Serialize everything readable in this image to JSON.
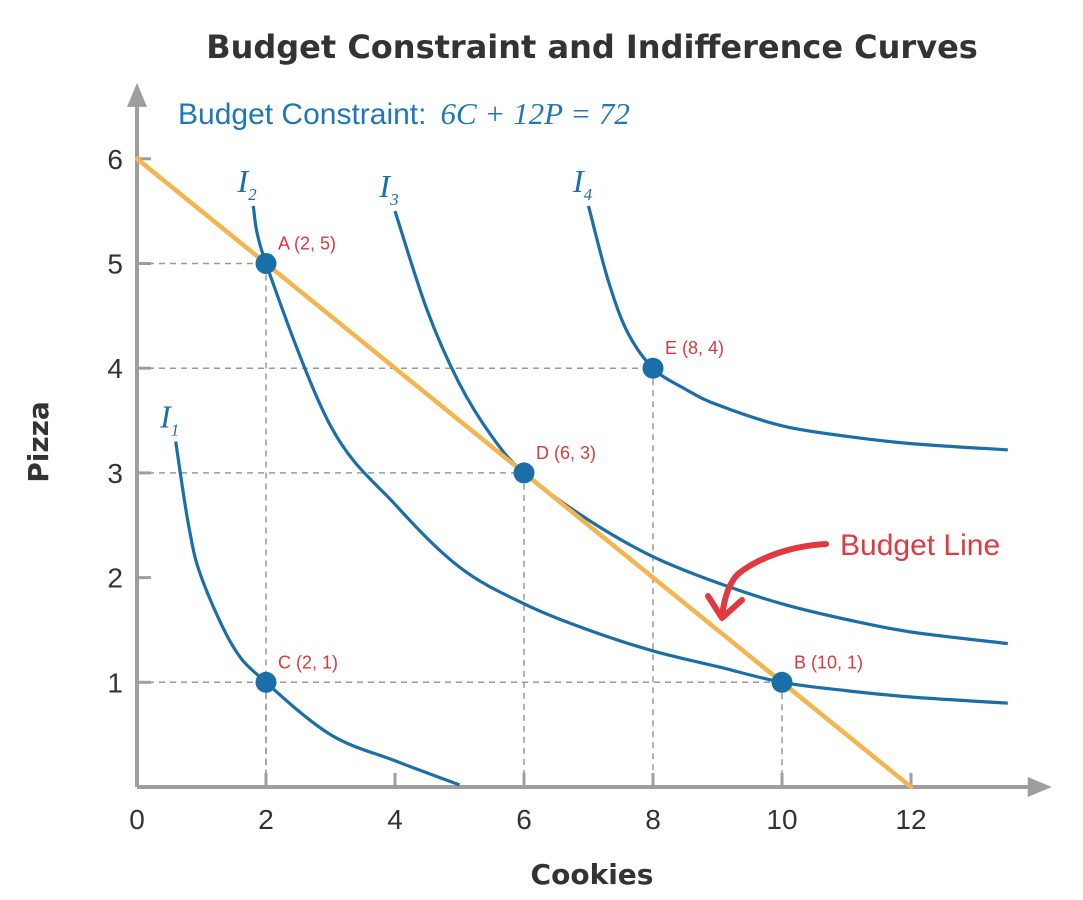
{
  "chart_data": {
    "type": "line",
    "title": "Budget Constraint and Indifference Curves",
    "subtitle_prefix": "Budget Constraint:",
    "subtitle_equation": "6C + 12P = 72",
    "xlabel": "Cookies",
    "ylabel": "Pizza",
    "xlim": [
      0,
      13.5
    ],
    "ylim": [
      0,
      6.4
    ],
    "x_ticks": [
      0,
      2,
      4,
      6,
      8,
      10,
      12
    ],
    "y_ticks": [
      1,
      2,
      3,
      4,
      5,
      6
    ],
    "x_tick_labels": [
      "0",
      "2",
      "4",
      "6",
      "8",
      "10",
      "12"
    ],
    "y_tick_labels": [
      "1",
      "2",
      "3",
      "4",
      "5",
      "6"
    ],
    "grid": false,
    "colors": {
      "budget": "#f4b54f",
      "indifference": "#1a6fa8",
      "points": "#1a6fa8",
      "point_labels": "#d93a3f",
      "guides": "#999999",
      "axes": "#9e9e9e"
    },
    "budget_line": {
      "x": [
        0,
        12
      ],
      "y": [
        6,
        0
      ]
    },
    "series": [
      {
        "name_main": "I",
        "name_sub": "1",
        "x": [
          0.6,
          0.8,
          1.0,
          1.5,
          2.0,
          3.0,
          4.0,
          5.0
        ],
        "y": [
          3.3,
          2.5,
          2.0,
          1.33,
          1.0,
          0.5,
          0.25,
          0.02
        ]
      },
      {
        "name_main": "I",
        "name_sub": "2",
        "x": [
          1.8,
          2.0,
          3.0,
          4.0,
          5.0,
          6.0,
          7.0,
          8.0,
          9.0,
          10.0,
          11.0,
          12.0,
          13.5
        ],
        "y": [
          5.55,
          5.0,
          3.45,
          2.7,
          2.1,
          1.75,
          1.5,
          1.3,
          1.15,
          1.0,
          0.92,
          0.86,
          0.8
        ]
      },
      {
        "name_main": "I",
        "name_sub": "3",
        "x": [
          4.0,
          4.5,
          5.0,
          5.5,
          6.0,
          7.0,
          8.0,
          9.0,
          10.0,
          11.0,
          12.0,
          13.5
        ],
        "y": [
          5.5,
          4.55,
          3.85,
          3.35,
          3.0,
          2.55,
          2.2,
          1.95,
          1.75,
          1.6,
          1.48,
          1.37
        ]
      },
      {
        "name_main": "I",
        "name_sub": "4",
        "x": [
          7.0,
          7.3,
          7.6,
          8.0,
          8.5,
          9.0,
          10.0,
          11.0,
          12.0,
          13.5
        ],
        "y": [
          5.55,
          4.85,
          4.35,
          4.0,
          3.8,
          3.65,
          3.45,
          3.35,
          3.28,
          3.22
        ]
      }
    ],
    "points": [
      {
        "label": "A (2, 5)",
        "x": 2,
        "y": 5
      },
      {
        "label": "B (10, 1)",
        "x": 10,
        "y": 1
      },
      {
        "label": "C (2, 1)",
        "x": 2,
        "y": 1
      },
      {
        "label": "D (6, 3)",
        "x": 6,
        "y": 3
      },
      {
        "label": "E (8, 4)",
        "x": 8,
        "y": 4
      }
    ],
    "annotation": {
      "text": "Budget Line",
      "points_to": [
        9,
        1.5
      ]
    }
  }
}
